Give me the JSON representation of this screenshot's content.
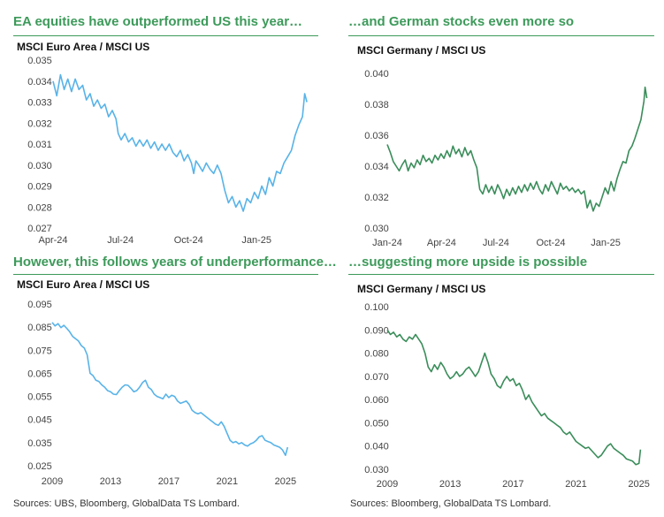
{
  "colors": {
    "title": "#3d9a5a",
    "blue": "#58b3e8",
    "green": "#3a8d5a"
  },
  "sources": {
    "left": "Sources: UBS, Bloomberg, GlobalData TS Lombard.",
    "right": "Sources: Bloomberg, GlobalData TS Lombard."
  },
  "chart_data": [
    {
      "type": "line",
      "title": "EA equities have outperformed US this year…",
      "ylabel": "MSCI Euro Area / MSCI US",
      "color": "#58b3e8",
      "x_ticks": [
        "Apr-24",
        "Jul-24",
        "Oct-24",
        "Jan-25"
      ],
      "x_tick_pos": [
        0,
        91,
        183,
        275
      ],
      "xlim": [
        0,
        350
      ],
      "y_ticks": [
        "0.035",
        "0.034",
        "0.033",
        "0.032",
        "0.031",
        "0.030",
        "0.029",
        "0.028",
        "0.027"
      ],
      "ylim": [
        0.027,
        0.035
      ],
      "x": [
        0,
        5,
        10,
        15,
        20,
        25,
        30,
        35,
        40,
        45,
        50,
        55,
        60,
        65,
        70,
        75,
        80,
        85,
        88,
        92,
        97,
        102,
        107,
        112,
        117,
        122,
        127,
        132,
        137,
        142,
        147,
        152,
        157,
        162,
        167,
        172,
        177,
        182,
        187,
        190,
        193,
        197,
        202,
        207,
        212,
        217,
        222,
        227,
        232,
        237,
        242,
        247,
        252,
        257,
        262,
        267,
        272,
        277,
        282,
        287,
        292,
        297,
        302,
        307,
        312,
        317,
        322,
        327,
        332,
        337,
        340,
        343
      ],
      "y": [
        0.034,
        0.0333,
        0.0343,
        0.0336,
        0.0341,
        0.0335,
        0.0341,
        0.0336,
        0.0338,
        0.0331,
        0.0334,
        0.0328,
        0.0331,
        0.0327,
        0.0329,
        0.0323,
        0.0326,
        0.0322,
        0.0315,
        0.0312,
        0.0315,
        0.0311,
        0.0313,
        0.0309,
        0.0312,
        0.0309,
        0.0312,
        0.0308,
        0.0311,
        0.0307,
        0.031,
        0.0307,
        0.031,
        0.0306,
        0.0304,
        0.0307,
        0.0302,
        0.0305,
        0.0301,
        0.0296,
        0.0302,
        0.03,
        0.0297,
        0.0301,
        0.0298,
        0.0296,
        0.03,
        0.0296,
        0.0288,
        0.0282,
        0.0285,
        0.028,
        0.0283,
        0.0278,
        0.0284,
        0.0282,
        0.0287,
        0.0284,
        0.029,
        0.0286,
        0.0294,
        0.029,
        0.0297,
        0.0296,
        0.0301,
        0.0304,
        0.0307,
        0.0314,
        0.0319,
        0.0323,
        0.0334,
        0.033
      ]
    },
    {
      "type": "line",
      "title": "…and German stocks even more so",
      "ylabel": "MSCI Germany / MSCI US",
      "color": "#3a8d5a",
      "x_ticks": [
        "Jan-24",
        "Apr-24",
        "Jul-24",
        "Oct-24",
        "Jan-25"
      ],
      "x_tick_pos": [
        0,
        91,
        182,
        274,
        366
      ],
      "xlim": [
        0,
        440
      ],
      "y_ticks": [
        "0.040",
        "0.038",
        "0.036",
        "0.034",
        "0.032",
        "0.030"
      ],
      "ylim": [
        0.03,
        0.04
      ],
      "x": [
        0,
        5,
        10,
        15,
        20,
        25,
        30,
        35,
        40,
        45,
        50,
        55,
        60,
        65,
        70,
        75,
        80,
        85,
        90,
        95,
        100,
        105,
        110,
        115,
        120,
        125,
        130,
        135,
        140,
        145,
        150,
        155,
        160,
        165,
        170,
        175,
        180,
        185,
        190,
        195,
        200,
        205,
        210,
        215,
        220,
        225,
        230,
        235,
        240,
        245,
        250,
        255,
        260,
        265,
        270,
        275,
        280,
        285,
        290,
        295,
        300,
        305,
        310,
        315,
        320,
        325,
        330,
        335,
        340,
        345,
        350,
        355,
        360,
        365,
        370,
        375,
        380,
        385,
        390,
        395,
        400,
        405,
        410,
        415,
        420,
        425,
        430,
        432,
        435
      ],
      "y": [
        0.0354,
        0.0349,
        0.0343,
        0.034,
        0.0337,
        0.0341,
        0.0344,
        0.0337,
        0.0342,
        0.0339,
        0.0344,
        0.0341,
        0.0347,
        0.0343,
        0.0345,
        0.0342,
        0.0347,
        0.0344,
        0.0348,
        0.0345,
        0.035,
        0.0346,
        0.0353,
        0.0348,
        0.0351,
        0.0346,
        0.0352,
        0.0347,
        0.035,
        0.0344,
        0.0339,
        0.0325,
        0.0322,
        0.0328,
        0.0323,
        0.0327,
        0.0322,
        0.0328,
        0.0324,
        0.0319,
        0.0325,
        0.0321,
        0.0326,
        0.0322,
        0.0327,
        0.0323,
        0.0328,
        0.0324,
        0.0329,
        0.0325,
        0.033,
        0.0325,
        0.0322,
        0.0328,
        0.0324,
        0.033,
        0.0326,
        0.0322,
        0.0329,
        0.0325,
        0.0327,
        0.0324,
        0.0326,
        0.0323,
        0.0325,
        0.0322,
        0.0324,
        0.0313,
        0.0318,
        0.0311,
        0.0316,
        0.0314,
        0.032,
        0.0326,
        0.0322,
        0.033,
        0.0324,
        0.0332,
        0.0338,
        0.0343,
        0.0342,
        0.035,
        0.0353,
        0.0358,
        0.0364,
        0.037,
        0.0382,
        0.0391,
        0.0384
      ]
    },
    {
      "type": "line",
      "title": "However, this follows years of underperformance…",
      "ylabel": "MSCI Euro Area / MSCI US",
      "color": "#58b3e8",
      "x_ticks": [
        "2009",
        "2013",
        "2017",
        "2021",
        "2025"
      ],
      "x_tick_pos": [
        2009,
        2013,
        2017,
        2021,
        2025
      ],
      "xlim": [
        2009,
        2026.1
      ],
      "y_ticks": [
        "0.095",
        "0.085",
        "0.075",
        "0.065",
        "0.055",
        "0.045",
        "0.035",
        "0.025"
      ],
      "ylim": [
        0.025,
        0.095
      ],
      "x": [
        2009.0,
        2009.2,
        2009.4,
        2009.6,
        2009.8,
        2010.0,
        2010.2,
        2010.4,
        2010.6,
        2010.8,
        2011.0,
        2011.2,
        2011.4,
        2011.6,
        2011.8,
        2012.0,
        2012.2,
        2012.4,
        2012.6,
        2012.8,
        2013.0,
        2013.2,
        2013.4,
        2013.6,
        2013.8,
        2014.0,
        2014.2,
        2014.4,
        2014.6,
        2014.8,
        2015.0,
        2015.2,
        2015.4,
        2015.6,
        2015.8,
        2016.0,
        2016.2,
        2016.4,
        2016.6,
        2016.8,
        2017.0,
        2017.2,
        2017.4,
        2017.6,
        2017.8,
        2018.0,
        2018.2,
        2018.4,
        2018.6,
        2018.8,
        2019.0,
        2019.2,
        2019.4,
        2019.6,
        2019.8,
        2020.0,
        2020.2,
        2020.4,
        2020.6,
        2020.8,
        2021.0,
        2021.2,
        2021.4,
        2021.6,
        2021.8,
        2022.0,
        2022.2,
        2022.4,
        2022.6,
        2022.8,
        2023.0,
        2023.2,
        2023.4,
        2023.6,
        2023.8,
        2024.0,
        2024.2,
        2024.4,
        2024.6,
        2024.8,
        2025.0,
        2025.15
      ],
      "y": [
        0.087,
        0.0855,
        0.0865,
        0.0848,
        0.0858,
        0.0845,
        0.083,
        0.081,
        0.08,
        0.079,
        0.077,
        0.076,
        0.073,
        0.065,
        0.064,
        0.062,
        0.0615,
        0.06,
        0.059,
        0.0575,
        0.057,
        0.056,
        0.0558,
        0.0575,
        0.059,
        0.06,
        0.0598,
        0.0585,
        0.057,
        0.0575,
        0.059,
        0.061,
        0.062,
        0.059,
        0.058,
        0.056,
        0.055,
        0.0545,
        0.054,
        0.056,
        0.0545,
        0.0555,
        0.055,
        0.053,
        0.052,
        0.0525,
        0.053,
        0.0515,
        0.049,
        0.048,
        0.0475,
        0.048,
        0.047,
        0.046,
        0.045,
        0.044,
        0.043,
        0.0425,
        0.044,
        0.042,
        0.039,
        0.036,
        0.035,
        0.0355,
        0.0345,
        0.035,
        0.034,
        0.0335,
        0.0345,
        0.035,
        0.036,
        0.0375,
        0.038,
        0.036,
        0.0355,
        0.035,
        0.034,
        0.0335,
        0.033,
        0.0318,
        0.0295,
        0.033
      ]
    },
    {
      "type": "line",
      "title": "…suggesting more upside is possible",
      "ylabel": "MSCI Germany / MSCI US",
      "color": "#3a8d5a",
      "x_ticks": [
        "2009",
        "2013",
        "2017",
        "2021",
        "2025"
      ],
      "x_tick_pos": [
        2009,
        2013,
        2017,
        2021,
        2025
      ],
      "xlim": [
        2009,
        2025.3
      ],
      "y_ticks": [
        "0.100",
        "0.090",
        "0.080",
        "0.070",
        "0.060",
        "0.050",
        "0.040",
        "0.030"
      ],
      "ylim": [
        0.03,
        0.1
      ],
      "x": [
        2009.0,
        2009.2,
        2009.4,
        2009.6,
        2009.8,
        2010.0,
        2010.2,
        2010.4,
        2010.6,
        2010.8,
        2011.0,
        2011.2,
        2011.4,
        2011.6,
        2011.8,
        2012.0,
        2012.2,
        2012.4,
        2012.6,
        2012.8,
        2013.0,
        2013.2,
        2013.4,
        2013.6,
        2013.8,
        2014.0,
        2014.2,
        2014.4,
        2014.6,
        2014.8,
        2015.0,
        2015.2,
        2015.4,
        2015.6,
        2015.8,
        2016.0,
        2016.2,
        2016.4,
        2016.6,
        2016.8,
        2017.0,
        2017.2,
        2017.4,
        2017.6,
        2017.8,
        2018.0,
        2018.2,
        2018.4,
        2018.6,
        2018.8,
        2019.0,
        2019.2,
        2019.4,
        2019.6,
        2019.8,
        2020.0,
        2020.2,
        2020.4,
        2020.6,
        2020.8,
        2021.0,
        2021.2,
        2021.4,
        2021.6,
        2021.8,
        2022.0,
        2022.2,
        2022.4,
        2022.6,
        2022.8,
        2023.0,
        2023.2,
        2023.4,
        2023.6,
        2023.8,
        2024.0,
        2024.2,
        2024.4,
        2024.6,
        2024.8,
        2025.0,
        2025.1
      ],
      "y": [
        0.09,
        0.088,
        0.089,
        0.087,
        0.088,
        0.086,
        0.085,
        0.087,
        0.086,
        0.088,
        0.086,
        0.084,
        0.08,
        0.074,
        0.072,
        0.075,
        0.073,
        0.076,
        0.074,
        0.071,
        0.069,
        0.07,
        0.072,
        0.07,
        0.071,
        0.073,
        0.074,
        0.072,
        0.07,
        0.072,
        0.076,
        0.08,
        0.076,
        0.071,
        0.069,
        0.066,
        0.065,
        0.068,
        0.07,
        0.068,
        0.069,
        0.066,
        0.067,
        0.064,
        0.06,
        0.062,
        0.059,
        0.057,
        0.055,
        0.053,
        0.054,
        0.052,
        0.051,
        0.05,
        0.049,
        0.048,
        0.046,
        0.045,
        0.046,
        0.044,
        0.042,
        0.041,
        0.04,
        0.039,
        0.0395,
        0.038,
        0.0365,
        0.035,
        0.036,
        0.038,
        0.04,
        0.041,
        0.039,
        0.038,
        0.037,
        0.036,
        0.0345,
        0.034,
        0.0335,
        0.032,
        0.0325,
        0.0385
      ]
    }
  ]
}
